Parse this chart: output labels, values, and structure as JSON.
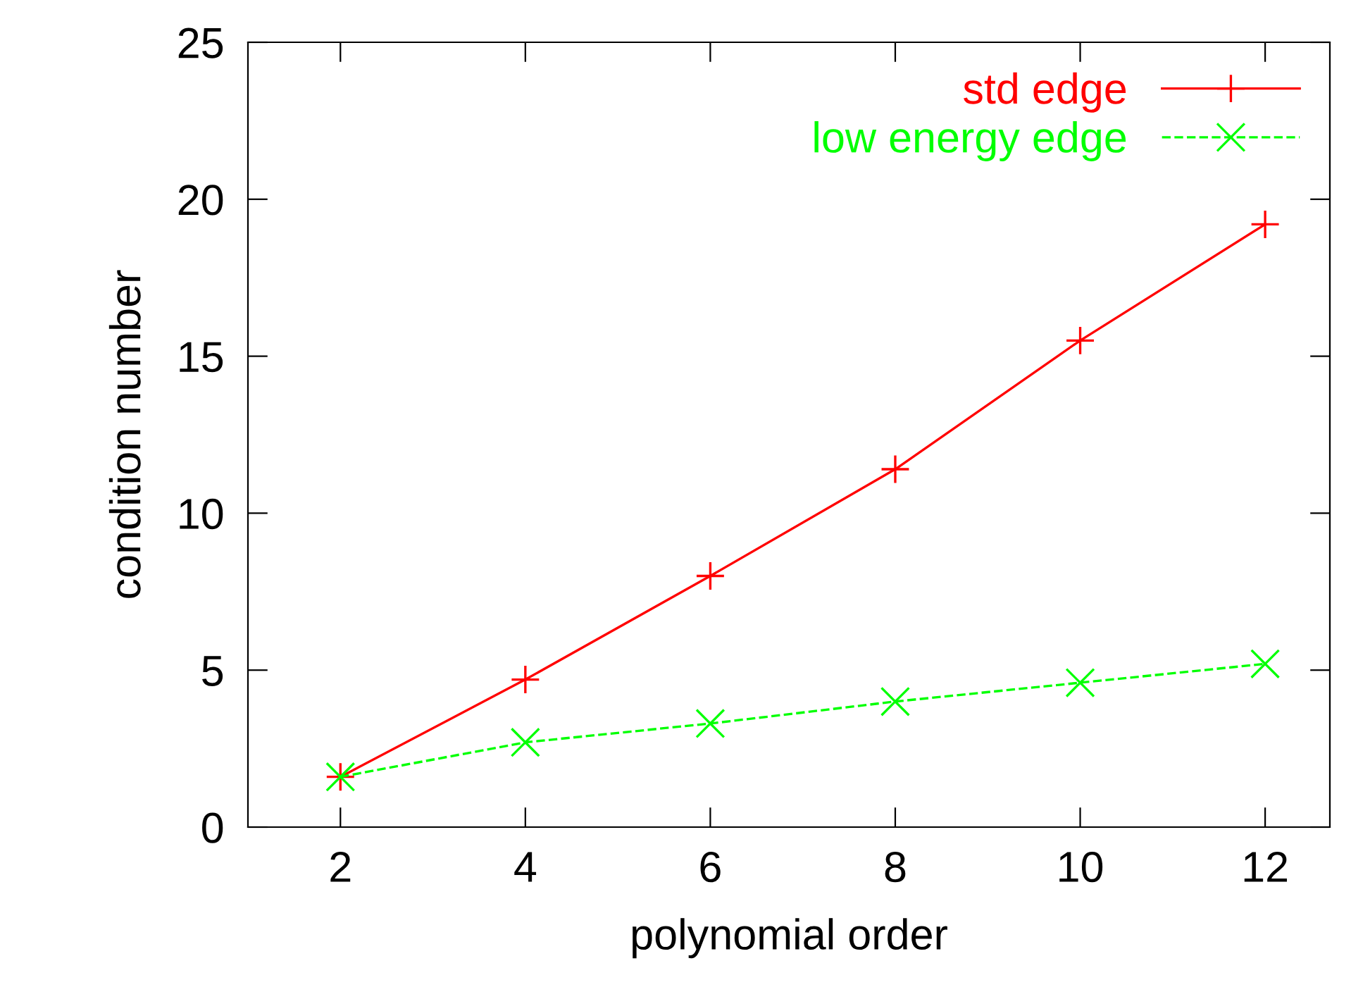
{
  "chart_data": {
    "type": "line",
    "xlabel": "polynomial order",
    "ylabel": "condition number",
    "x": [
      2,
      4,
      6,
      8,
      10,
      12
    ],
    "series": [
      {
        "name": "std edge",
        "color": "#ff0000",
        "marker": "plus",
        "line_style": "solid",
        "values": [
          1.6,
          4.7,
          8.0,
          11.4,
          15.5,
          19.2
        ]
      },
      {
        "name": "low energy edge",
        "color": "#00ff00",
        "marker": "cross",
        "line_style": "dashed",
        "values": [
          1.6,
          2.7,
          3.3,
          4.0,
          4.6,
          5.2
        ]
      }
    ],
    "xlim": [
      1,
      12.7
    ],
    "xticks": [
      2,
      4,
      6,
      8,
      10,
      12
    ],
    "ylim": [
      0,
      25
    ],
    "yticks": [
      0,
      5,
      10,
      15,
      20,
      25
    ],
    "grid": false,
    "legend": "top right"
  }
}
